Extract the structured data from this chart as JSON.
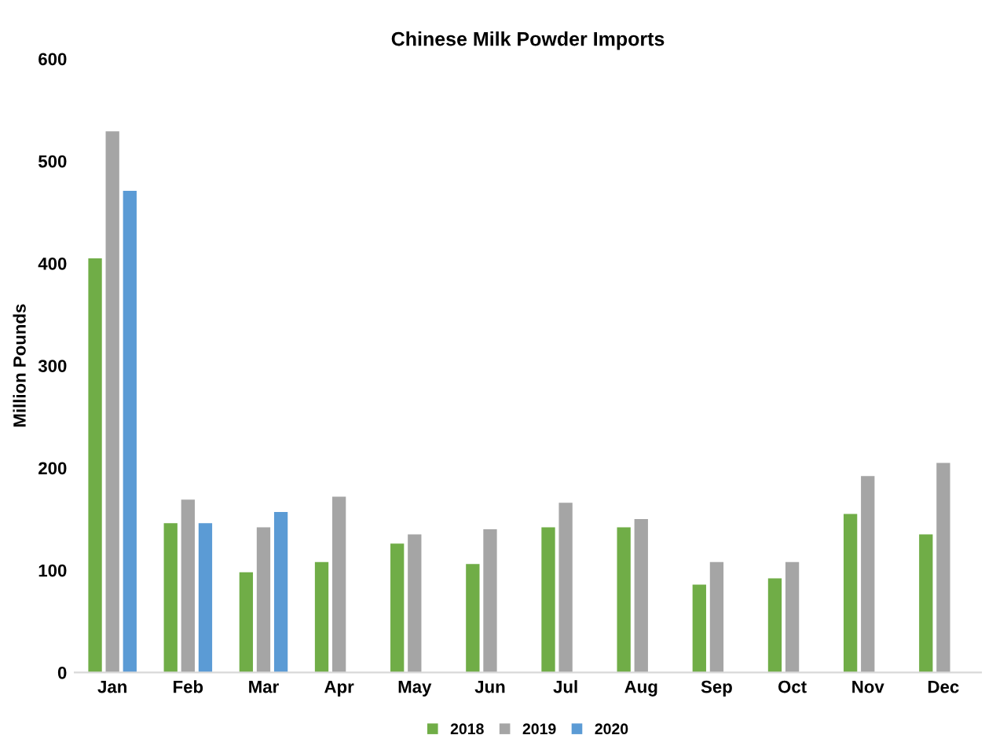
{
  "chart_data": {
    "type": "bar",
    "title": "Chinese Milk Powder Imports",
    "ylabel": "Million Pounds",
    "categories": [
      "Jan",
      "Feb",
      "Mar",
      "Apr",
      "May",
      "Jun",
      "Jul",
      "Aug",
      "Sep",
      "Oct",
      "Nov",
      "Dec"
    ],
    "series": [
      {
        "name": "2018",
        "color": "#70ad47",
        "values": [
          405,
          146,
          98,
          108,
          126,
          106,
          142,
          142,
          86,
          92,
          155,
          135
        ]
      },
      {
        "name": "2019",
        "color": "#a5a5a5",
        "values": [
          529,
          169,
          142,
          172,
          135,
          140,
          166,
          150,
          108,
          108,
          192,
          205
        ]
      },
      {
        "name": "2020",
        "color": "#5b9bd5",
        "values": [
          471,
          146,
          157,
          null,
          null,
          null,
          null,
          null,
          null,
          null,
          null,
          null
        ]
      }
    ],
    "ylim": [
      0,
      600
    ],
    "yticks": [
      0,
      100,
      200,
      300,
      400,
      500,
      600
    ],
    "grid": false,
    "legend": "bottom"
  }
}
